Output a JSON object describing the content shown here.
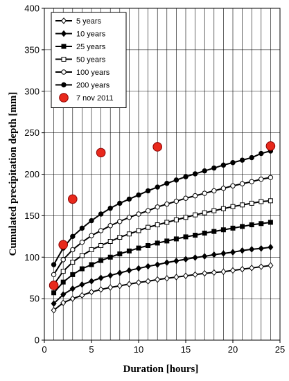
{
  "chart_data": {
    "type": "line",
    "title": "",
    "xlabel": "Duration [hours]",
    "ylabel": "Cumulated precipitation depth [mm]",
    "xlim": [
      0,
      25
    ],
    "ylim": [
      0,
      400
    ],
    "xticks": [
      0,
      5,
      10,
      15,
      20,
      25
    ],
    "yticks": [
      0,
      50,
      100,
      150,
      200,
      250,
      300,
      350,
      400
    ],
    "grid": "vertical every 1 hour, horizontal every 50 mm",
    "legend_position": "top-left",
    "x": [
      1,
      2,
      3,
      4,
      5,
      6,
      7,
      8,
      9,
      10,
      11,
      12,
      13,
      14,
      15,
      16,
      17,
      18,
      19,
      20,
      21,
      22,
      23,
      24
    ],
    "series": [
      {
        "name": "5 years",
        "marker": "diamond-open",
        "values": [
          36,
          45,
          50,
          54,
          58,
          61,
          63.5,
          65.5,
          67.5,
          69.5,
          71,
          73,
          74.5,
          76,
          77.5,
          79,
          80.5,
          81.5,
          82.5,
          84,
          85.5,
          87,
          88.5,
          90
        ]
      },
      {
        "name": "10 years",
        "marker": "diamond-filled",
        "values": [
          44,
          55,
          62,
          67,
          71,
          75,
          78,
          81,
          84,
          86.5,
          89,
          91,
          93.5,
          95.5,
          97.5,
          99.5,
          101,
          103,
          104.5,
          106,
          108,
          109.5,
          110.5,
          112
        ]
      },
      {
        "name": "25 years",
        "marker": "square-filled",
        "values": [
          57,
          70,
          79,
          86,
          91,
          96,
          100,
          104,
          107.5,
          111,
          114,
          117,
          119.5,
          122,
          124.5,
          126.5,
          129,
          131,
          133,
          135,
          137,
          139,
          140.5,
          142
        ]
      },
      {
        "name": "50 years",
        "marker": "square-open",
        "values": [
          67,
          83,
          94,
          102,
          109,
          114,
          119,
          124,
          128,
          132,
          136,
          139,
          142,
          145,
          148,
          151,
          153.5,
          156,
          158.5,
          161,
          163,
          165,
          167,
          168
        ]
      },
      {
        "name": "100 years",
        "marker": "circle-open",
        "values": [
          79,
          97,
          109,
          118,
          126,
          132,
          138,
          143,
          148,
          152,
          156,
          160.5,
          164,
          167.5,
          171,
          174,
          177,
          180,
          183,
          186,
          188.5,
          191,
          194,
          196
        ]
      },
      {
        "name": "200 years",
        "marker": "circle-filled",
        "values": [
          91,
          111,
          125,
          135,
          144,
          152,
          159,
          165,
          170,
          175,
          180,
          184.5,
          189,
          193,
          197,
          200.5,
          204,
          207.5,
          211,
          214,
          217,
          220,
          225,
          228
        ]
      },
      {
        "name": "7 nov 2011",
        "marker": "red-circle",
        "type": "scatter",
        "x": [
          1,
          2,
          3,
          6,
          12,
          24
        ],
        "values": [
          66,
          115,
          170,
          226,
          233,
          234
        ]
      }
    ]
  },
  "colors": {
    "series": "#000000",
    "event": "#e8291c",
    "event_stroke": "#8a0000",
    "grid": "#000000"
  }
}
